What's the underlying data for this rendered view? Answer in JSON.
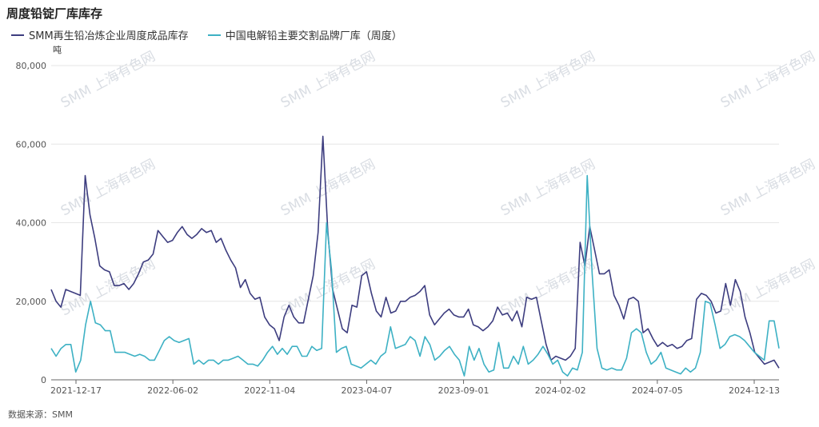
{
  "title": "周度铅锭厂库库存",
  "unit_label": "吨",
  "source_label": "数据来源：SMM",
  "watermark_text": "SMM 上海有色网",
  "colors": {
    "series1": "#3d3d7f",
    "series2": "#3db1c4",
    "grid": "#e6e6e6",
    "axis": "#666666"
  },
  "chart_data": {
    "type": "line",
    "title": "周度铅锭厂库库存",
    "ylabel": "吨",
    "ylim": [
      0,
      80000
    ],
    "yticks": [
      0,
      20000,
      40000,
      60000,
      80000
    ],
    "ytick_labels": [
      "0",
      "20,000",
      "40,000",
      "60,000",
      "80,000"
    ],
    "xtick_labels": [
      "2021-12-17",
      "2022-06-02",
      "2022-11-04",
      "2023-04-07",
      "2023-09-01",
      "2024-02-02",
      "2024-07-05",
      "2024-12-13"
    ],
    "grid": true,
    "legend_position": "top-left",
    "series": [
      {
        "name": "SMM再生铅冶炼企业周度成品库存",
        "values": [
          23000,
          20000,
          18500,
          23000,
          22500,
          22000,
          21500,
          52000,
          42000,
          36000,
          29000,
          28000,
          27500,
          24000,
          24000,
          24500,
          23000,
          24500,
          27000,
          30000,
          30500,
          32000,
          38000,
          36500,
          35000,
          35500,
          37500,
          39000,
          37000,
          36000,
          37000,
          38500,
          37500,
          38000,
          35000,
          36000,
          33000,
          30500,
          28500,
          23500,
          25500,
          22000,
          20500,
          21000,
          16000,
          14000,
          13000,
          10000,
          16000,
          19000,
          16000,
          14500,
          14500,
          20500,
          26500,
          37500,
          62000,
          38000,
          23000,
          18000,
          13000,
          12000,
          19000,
          18500,
          26500,
          27500,
          22000,
          17500,
          16000,
          21000,
          17000,
          17500,
          20000,
          20000,
          21000,
          21500,
          22500,
          24000,
          16500,
          14000,
          15500,
          17000,
          18000,
          16500,
          16000,
          16000,
          18000,
          14000,
          13500,
          12500,
          13500,
          15000,
          18500,
          16500,
          17000,
          15000,
          17500,
          13500,
          21000,
          20500,
          21000,
          15000,
          9000,
          5000,
          6000,
          5500,
          5000,
          6000,
          8000,
          35000,
          29000,
          39000,
          33000,
          27000,
          27000,
          28000,
          21500,
          19000,
          15500,
          20500,
          21000,
          20000,
          12000,
          13000,
          10500,
          8500,
          9500,
          8500,
          9000,
          8000,
          8500,
          10000,
          10500,
          20500,
          22000,
          21500,
          20000,
          17000,
          17500,
          24500,
          19000,
          25500,
          22500,
          16000,
          12000,
          7000,
          5500,
          4000,
          4500,
          5000,
          3000
        ]
      },
      {
        "name": "中国电解铅主要交割品牌厂库（周度）",
        "values": [
          8000,
          6000,
          8000,
          9000,
          9000,
          2000,
          5000,
          14000,
          20000,
          14500,
          14000,
          12500,
          12500,
          7000,
          7000,
          7000,
          6500,
          6000,
          6500,
          6000,
          5000,
          5000,
          7500,
          10000,
          11000,
          10000,
          9500,
          10000,
          10500,
          4000,
          5000,
          4000,
          5000,
          5000,
          4000,
          5000,
          5000,
          5500,
          6000,
          5000,
          4000,
          4000,
          3500,
          5000,
          7000,
          8500,
          6500,
          8000,
          6500,
          8500,
          8500,
          6000,
          6000,
          8500,
          7500,
          8000,
          40000,
          28000,
          7000,
          8000,
          8500,
          4000,
          3500,
          3000,
          4000,
          5000,
          4000,
          6000,
          7000,
          13500,
          8000,
          8500,
          9000,
          11000,
          10000,
          6000,
          11000,
          9000,
          5000,
          6000,
          7500,
          8500,
          6500,
          5000,
          1000,
          8500,
          5000,
          8000,
          4000,
          2000,
          2500,
          9500,
          3000,
          3000,
          6000,
          4000,
          8500,
          4000,
          5000,
          6500,
          8500,
          6500,
          4000,
          5000,
          2000,
          1000,
          3000,
          2500,
          7000,
          52000,
          27000,
          8000,
          3000,
          2500,
          3000,
          2500,
          2500,
          5500,
          12000,
          13000,
          12000,
          7000,
          4000,
          5000,
          7000,
          3000,
          2500,
          2000,
          1500,
          3000,
          2000,
          3000,
          7000,
          20000,
          19500,
          14000,
          8000,
          9000,
          11000,
          11500,
          11000,
          10000,
          8500,
          7000,
          6000,
          5000,
          15000,
          15000,
          8000
        ]
      }
    ]
  }
}
